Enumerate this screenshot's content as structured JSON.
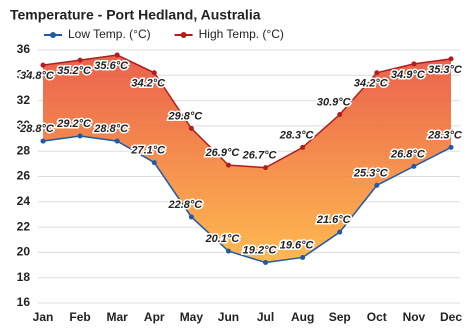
{
  "chart_data": {
    "type": "line",
    "title": "Temperature - Port Hedland, Australia",
    "categories": [
      "Jan",
      "Feb",
      "Mar",
      "Apr",
      "May",
      "Jun",
      "Jul",
      "Aug",
      "Sep",
      "Oct",
      "Nov",
      "Dec"
    ],
    "series": [
      {
        "name": "Low Temp. (°C)",
        "color": "#1f5aa6",
        "values": [
          28.8,
          29.2,
          28.8,
          27.1,
          22.8,
          20.1,
          19.2,
          19.6,
          21.6,
          25.3,
          26.8,
          28.3
        ],
        "value_labels": [
          "28.8°C",
          "29.2°C",
          "28.8°C",
          "27.1°C",
          "22.8°C",
          "20.1°C",
          "19.2°C",
          "19.6°C",
          "21.6°C",
          "25.3°C",
          "26.8°C",
          "28.3°C"
        ]
      },
      {
        "name": "High Temp. (°C)",
        "color": "#b01e1e",
        "values": [
          34.8,
          35.2,
          35.6,
          34.2,
          29.8,
          26.9,
          26.7,
          28.3,
          30.9,
          34.2,
          34.9,
          35.3
        ],
        "value_labels": [
          "34.8°C",
          "35.2°C",
          "35.6°C",
          "34.2°C",
          "29.8°C",
          "26.9°C",
          "26.7°C",
          "28.3°C",
          "30.9°C",
          "34.2°C",
          "34.9°C",
          "35.3°C"
        ]
      }
    ],
    "ylim": [
      16,
      36
    ],
    "yticks": [
      16,
      18,
      20,
      22,
      24,
      26,
      28,
      30,
      32,
      34,
      36
    ],
    "grid": true,
    "legend": "top-left"
  }
}
